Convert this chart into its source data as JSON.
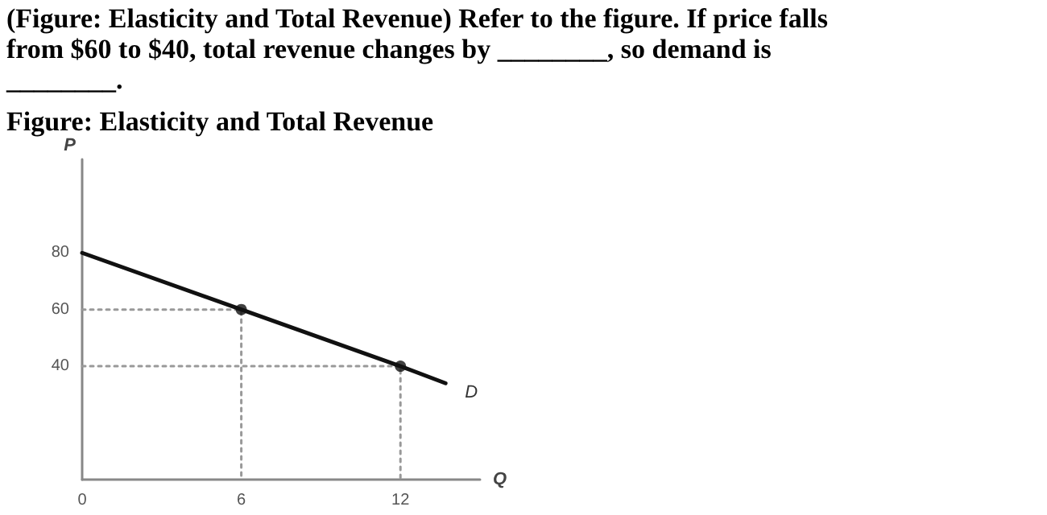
{
  "chart_data": {
    "type": "line",
    "title": "(Figure: Elasticity and Total Revenue) Refer to the figure. If price falls from $60 to $40, total revenue changes by ________, so demand is ________.",
    "subtitle": "Figure: Elasticity and Total Revenue",
    "xlabel": "Q",
    "ylabel": "P",
    "xlim": [
      0,
      15
    ],
    "ylim": [
      0,
      113
    ],
    "xticks": [
      0,
      6,
      12
    ],
    "yticks": [
      40,
      60,
      80
    ],
    "series": [
      {
        "name": "D",
        "color": "#111111",
        "x": [
          0,
          6,
          12,
          13.7
        ],
        "values": [
          80,
          60,
          40,
          34
        ],
        "marker": "none",
        "line_style": "solid"
      },
      {
        "type": "scatter",
        "color": "#111111",
        "x": [
          6,
          12
        ],
        "values": [
          60,
          40
        ],
        "marker": "circle"
      },
      {
        "color": "#999999",
        "x": [
          0,
          6,
          6
        ],
        "values": [
          60,
          60,
          0
        ],
        "marker": "none",
        "line_style": "dotted"
      },
      {
        "color": "#999999",
        "x": [
          0,
          12,
          12
        ],
        "values": [
          40,
          40,
          0
        ],
        "marker": "none",
        "line_style": "dotted"
      }
    ]
  }
}
